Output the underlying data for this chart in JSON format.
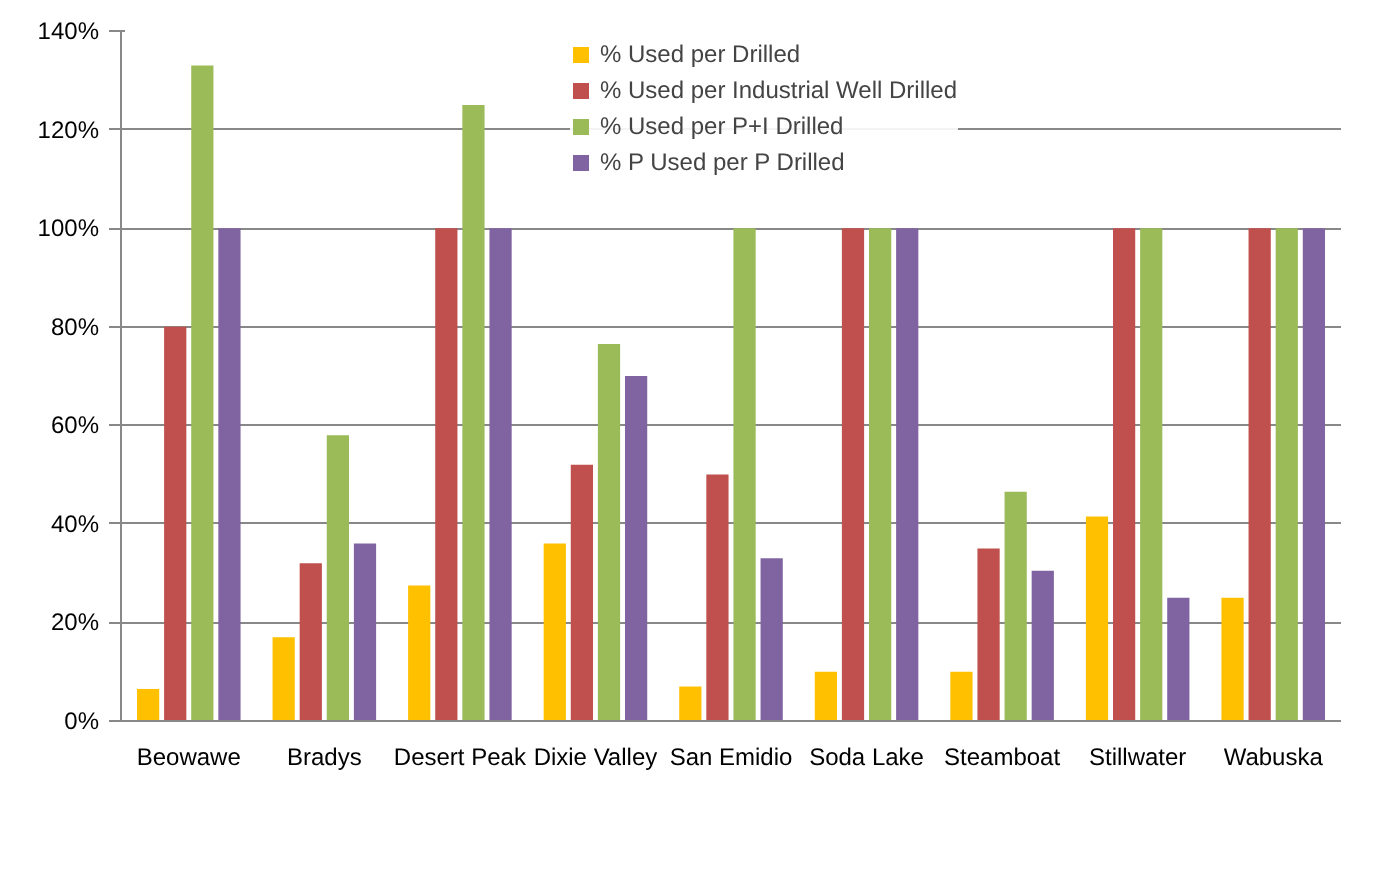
{
  "chart_data": {
    "type": "bar",
    "categories": [
      "Beowawe",
      "Bradys",
      "Desert Peak",
      "Dixie Valley",
      "San Emidio",
      "Soda Lake",
      "Steamboat",
      "Stillwater",
      "Wabuska"
    ],
    "series": [
      {
        "name": "% Used per Drilled",
        "color": "#ffc000",
        "values": [
          6.5,
          17,
          27.5,
          36,
          7,
          10,
          10,
          41.5,
          25
        ]
      },
      {
        "name": "% Used per Industrial Well Drilled",
        "color": "#c0504d",
        "values": [
          80,
          32,
          100,
          52,
          50,
          100,
          35,
          100,
          100
        ]
      },
      {
        "name": "% Used per P+I Drilled",
        "color": "#9bbb59",
        "values": [
          133,
          58,
          125,
          76.5,
          100,
          100,
          46.5,
          100,
          100
        ]
      },
      {
        "name": "% P Used per P Drilled",
        "color": "#8064a2",
        "values": [
          100,
          36,
          100,
          70,
          33,
          100,
          30.5,
          25,
          100
        ]
      }
    ],
    "ylim": [
      0,
      140
    ],
    "yticks": [
      {
        "value": 0,
        "label": "0%"
      },
      {
        "value": 20,
        "label": "20%"
      },
      {
        "value": 40,
        "label": "40%"
      },
      {
        "value": 60,
        "label": "60%"
      },
      {
        "value": 80,
        "label": "80%"
      },
      {
        "value": 100,
        "label": "100%"
      },
      {
        "value": 120,
        "label": "120%"
      },
      {
        "value": 140,
        "label": "140%"
      }
    ],
    "grid": "y",
    "legend": "top"
  }
}
